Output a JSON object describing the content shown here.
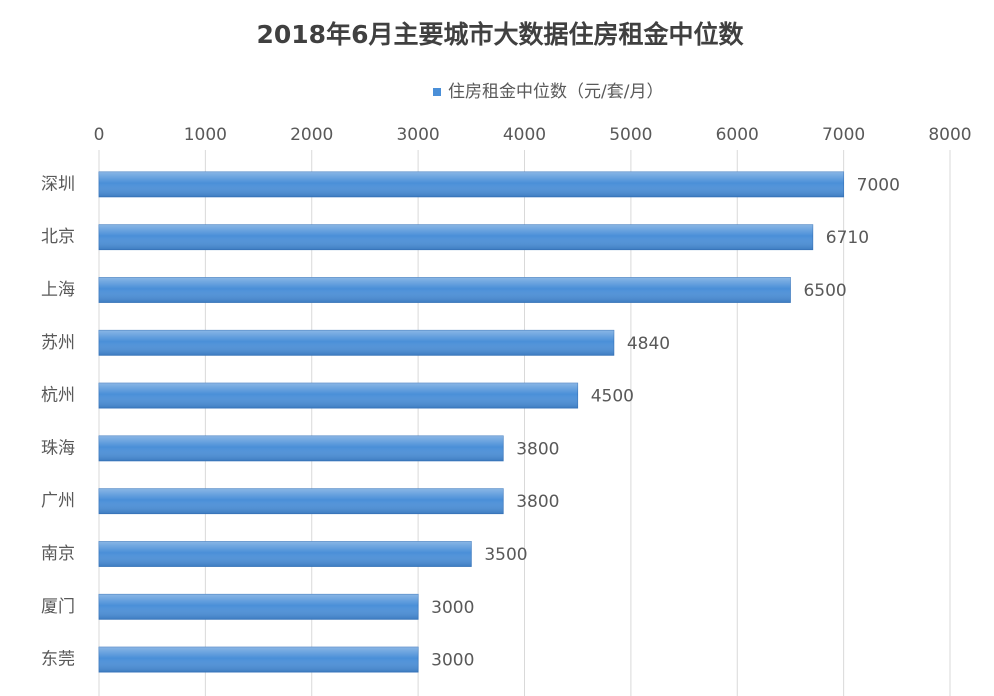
{
  "chart_data": {
    "type": "bar",
    "orientation": "horizontal",
    "title": "2018年6月主要城市大数据住房租金中位数",
    "categories": [
      "深圳",
      "北京",
      "上海",
      "苏州",
      "杭州",
      "珠海",
      "广州",
      "南京",
      "厦门",
      "东莞"
    ],
    "series": [
      {
        "name": "住房租金中位数（元/套/月）",
        "color": "#4a8fd8",
        "values": [
          7000,
          6710,
          6500,
          4840,
          4500,
          3800,
          3800,
          3500,
          3000,
          3000
        ]
      }
    ],
    "xlim": [
      0,
      8000
    ],
    "xticks": [
      0,
      1000,
      2000,
      3000,
      4000,
      5000,
      6000,
      7000,
      8000
    ],
    "grid": true,
    "legend": "top"
  }
}
